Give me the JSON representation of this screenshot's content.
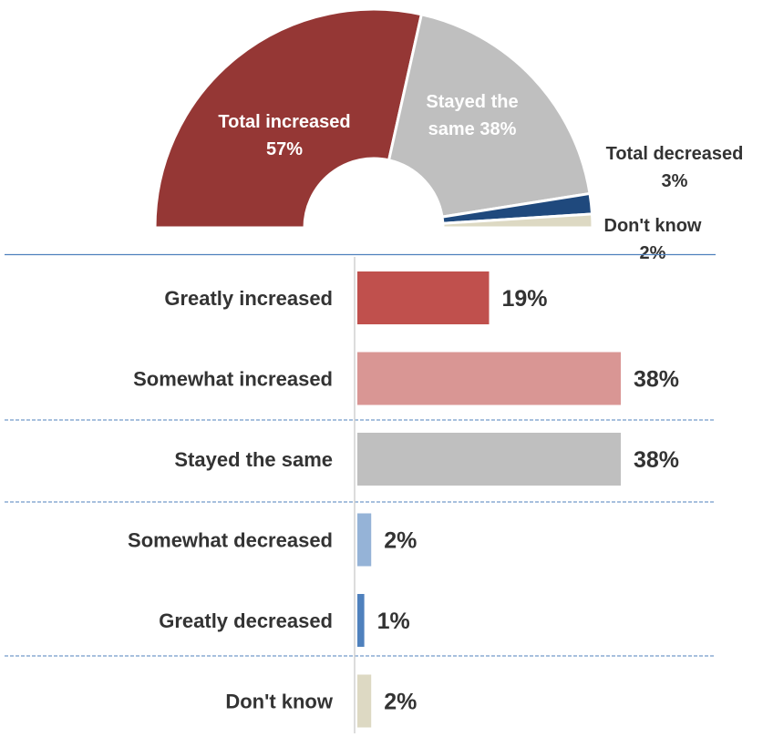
{
  "chart_data": [
    {
      "type": "pie",
      "subtype": "half-donut",
      "slices": [
        {
          "label": "Total increased",
          "value": 57,
          "display": "57%",
          "color": "#953735"
        },
        {
          "label": "Stayed the same",
          "value": 38,
          "display": "38%",
          "color": "#bfbfbf"
        },
        {
          "label": "Total decreased",
          "value": 3,
          "display": "3%",
          "color": "#1f497d"
        },
        {
          "label": "Don't know",
          "value": 2,
          "display": "2%",
          "color": "#ddd9c3"
        }
      ]
    },
    {
      "type": "bar",
      "orientation": "horizontal",
      "categories": [
        "Greatly increased",
        "Somewhat increased",
        "Stayed the same",
        "Somewhat decreased",
        "Greatly decreased",
        "Don't know"
      ],
      "values": [
        19,
        38,
        38,
        2,
        1,
        2
      ],
      "value_labels": [
        "19%",
        "38%",
        "38%",
        "2%",
        "1%",
        "2%"
      ],
      "colors": [
        "#c0504d",
        "#d99694",
        "#bfbfbf",
        "#95b3d7",
        "#4f81bd",
        "#ddd9c3"
      ],
      "xlim": [
        0,
        38
      ]
    }
  ]
}
